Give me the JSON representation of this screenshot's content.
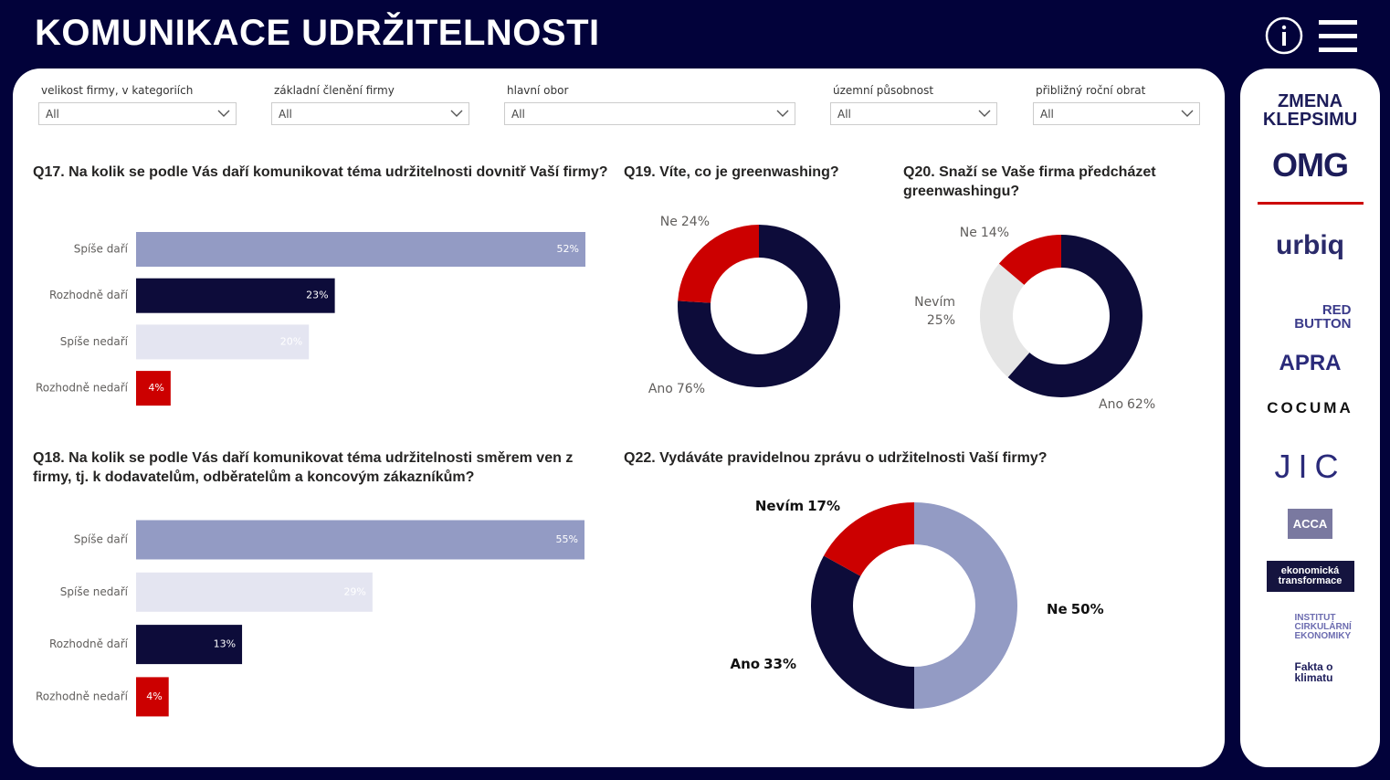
{
  "header": {
    "title": "KOMUNIKACE UDRŽITELNOSTI"
  },
  "filters": [
    {
      "label": "velikost firmy, v kategoriích",
      "value": "All"
    },
    {
      "label": "základní členění firmy",
      "value": "All"
    },
    {
      "label": "hlavní obor",
      "value": "All"
    },
    {
      "label": "územní působnost",
      "value": "All"
    },
    {
      "label": "přibližný roční obrat",
      "value": "All"
    }
  ],
  "chart_data": [
    {
      "type": "bar",
      "title": "Q17. Na kolik se podle Vás daří komunikovat téma udržitelnosti dovnitř Vaší firmy?",
      "categories": [
        "Spíše daří",
        "Rozhodně daří",
        "Spíše nedaří",
        "Rozhodně nedaří"
      ],
      "values": [
        52,
        23,
        20,
        4
      ],
      "value_labels": [
        "52%",
        "23%",
        "20%",
        "4%"
      ],
      "colors": [
        "#939bc4",
        "#0d0c3a",
        "#e4e5f1",
        "#cc0000"
      ]
    },
    {
      "type": "pie",
      "title": "Q19. Víte, co je greenwashing?",
      "categories": [
        "Ano",
        "Ne"
      ],
      "values": [
        76,
        24
      ],
      "value_labels": [
        "76%",
        "24%"
      ],
      "colors": [
        "#0d0c3a",
        "#cc0000"
      ]
    },
    {
      "type": "pie",
      "title": "Q20. Snaží se Vaše firma předcházet greenwashingu?",
      "categories": [
        "Ano",
        "Nevím",
        "Ne"
      ],
      "values": [
        62,
        25,
        14
      ],
      "value_labels": [
        "62%",
        "25%",
        "14%"
      ],
      "colors": [
        "#0d0c3a",
        "#e6e6e6",
        "#cc0000"
      ]
    },
    {
      "type": "bar",
      "title": "Q18. Na kolik se podle Vás daří komunikovat téma udržitelnosti směrem ven z firmy, tj. k dodavatelům, odběratelům a koncovým zákazníkům?",
      "categories": [
        "Spíše daří",
        "Spíše nedaří",
        "Rozhodně daří",
        "Rozhodně nedaří"
      ],
      "values": [
        55,
        29,
        13,
        4
      ],
      "value_labels": [
        "55%",
        "29%",
        "13%",
        "4%"
      ],
      "colors": [
        "#939bc4",
        "#e4e5f1",
        "#0d0c3a",
        "#cc0000"
      ]
    },
    {
      "type": "pie",
      "title": "Q22. Vydáváte pravidelnou zprávu o udržitelnosti Vaší firmy?",
      "categories": [
        "Ne",
        "Ano",
        "Nevím"
      ],
      "values": [
        50,
        33,
        17
      ],
      "value_labels": [
        "50%",
        "33%",
        "17%"
      ],
      "colors": [
        "#939bc4",
        "#0d0c3a",
        "#cc0000"
      ]
    }
  ],
  "sponsors": [
    "ZMENA KLEPSIMU",
    "OMG",
    "urbiq",
    "RED BUTTON",
    "APRA",
    "COCUMA",
    "JIC",
    "ACCA",
    "ekonomická transformace",
    "INSTITUT CIRKULÁRNÍ EKONOMIKY",
    "Fakta o klimatu"
  ]
}
